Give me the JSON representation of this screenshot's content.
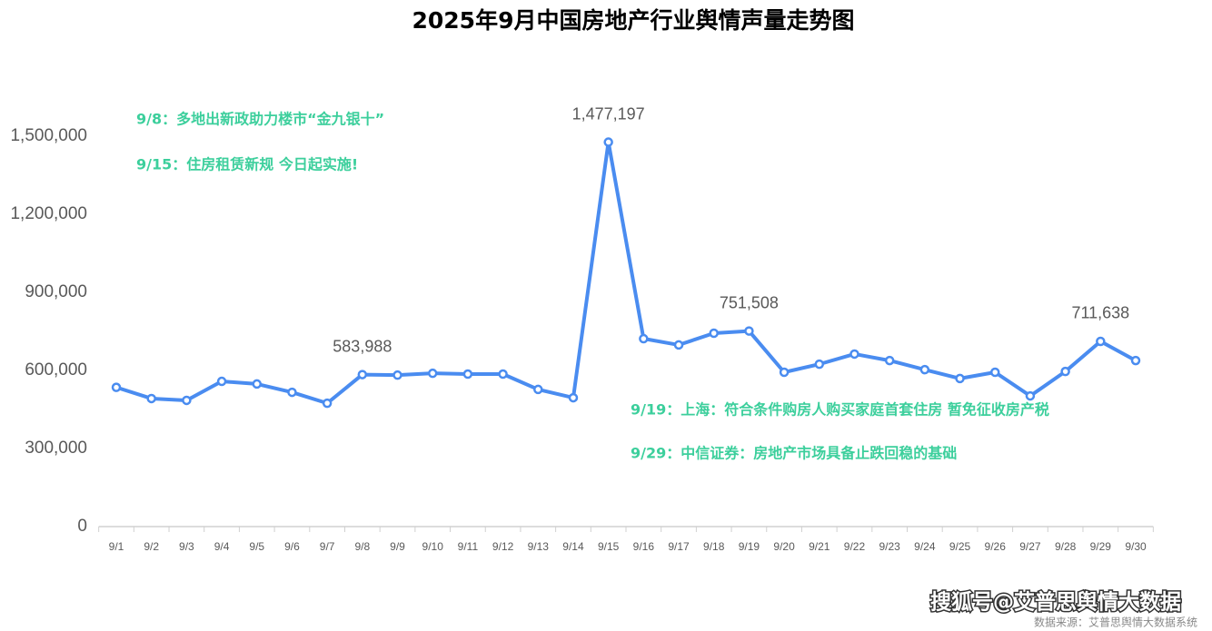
{
  "chart_data": {
    "type": "line",
    "title": "2025年9月中国房地产行业舆情声量走势图",
    "categories": [
      "9/1",
      "9/2",
      "9/3",
      "9/4",
      "9/5",
      "9/6",
      "9/7",
      "9/8",
      "9/9",
      "9/10",
      "9/11",
      "9/12",
      "9/13",
      "9/14",
      "9/15",
      "9/16",
      "9/17",
      "9/18",
      "9/19",
      "9/20",
      "9/21",
      "9/22",
      "9/23",
      "9/24",
      "9/25",
      "9/26",
      "9/27",
      "9/28",
      "9/29",
      "9/30"
    ],
    "values": [
      535000,
      492000,
      485000,
      558000,
      548000,
      516000,
      474000,
      583988,
      582000,
      589000,
      586000,
      586000,
      527000,
      495000,
      1477197,
      722000,
      698000,
      743000,
      751508,
      593000,
      624000,
      663000,
      638000,
      603000,
      569000,
      593000,
      502000,
      596000,
      711638,
      638000
    ],
    "value_labels": [
      null,
      null,
      null,
      null,
      null,
      null,
      null,
      "583,988",
      null,
      null,
      null,
      null,
      null,
      null,
      "1,477,197",
      null,
      null,
      null,
      "751,508",
      null,
      null,
      null,
      null,
      null,
      null,
      null,
      null,
      null,
      "711,638",
      null
    ],
    "color": "#4a8cf0",
    "ylim": [
      0,
      1500000
    ],
    "yticks": [
      0,
      {
        "value": 300000,
        "label": "300,000"
      },
      {
        "value": 600000,
        "label": "600,000"
      },
      {
        "value": 900000,
        "label": "900,000"
      },
      {
        "value": 1200000,
        "label": "1,200,000"
      },
      {
        "value": 1500000,
        "label": "1,500,000"
      }
    ],
    "annotations": [
      "9/8：多地出新政助力楼市“金九银十”",
      "9/15：住房租赁新规 今日起实施!",
      "9/19：上海：符合条件购房人购买家庭首套住房 暂免征收房产税",
      "9/29：中信证券：房地产市场具备止跌回稳的基础"
    ],
    "footer": "搜狐号@艾普思舆情大数据",
    "source": "数据来源：艾普思舆情大数据系统"
  }
}
